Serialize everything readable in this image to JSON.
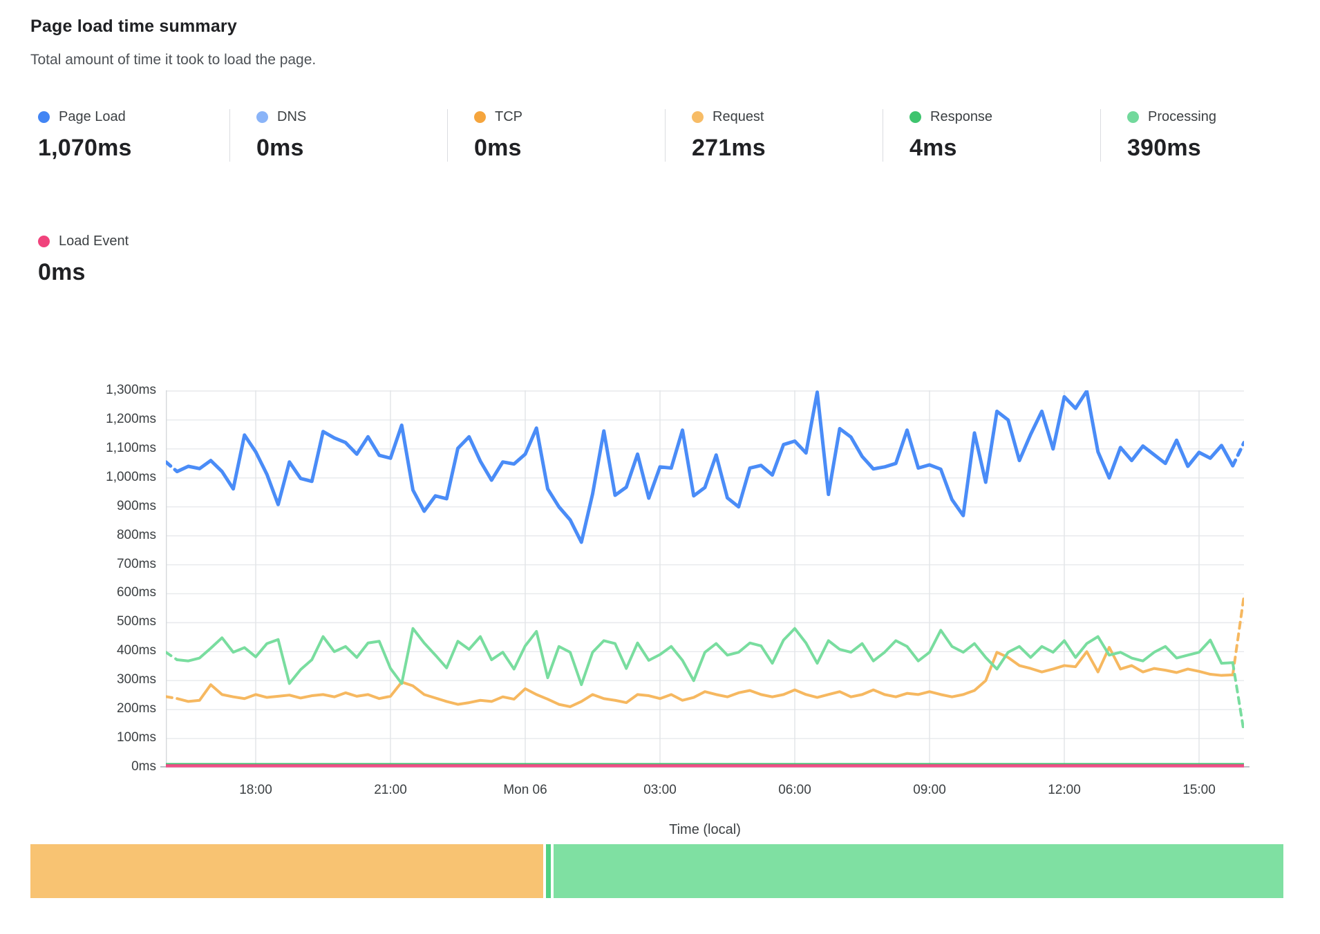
{
  "header": {
    "title": "Page load time summary",
    "subtitle": "Total amount of time it took to load the page."
  },
  "summary": {
    "stats": [
      {
        "label": "Page Load",
        "value": "1,070ms",
        "color": "#4285f4"
      },
      {
        "label": "DNS",
        "value": "0ms",
        "color": "#8ab4f8"
      },
      {
        "label": "TCP",
        "value": "0ms",
        "color": "#f5a53d"
      },
      {
        "label": "Request",
        "value": "271ms",
        "color": "#f7bc66"
      },
      {
        "label": "Response",
        "value": "4ms",
        "color": "#3ec46e"
      },
      {
        "label": "Processing",
        "value": "390ms",
        "color": "#72d99c"
      }
    ],
    "secondary": [
      {
        "label": "Load Event",
        "value": "0ms",
        "color": "#f0437c"
      }
    ]
  },
  "chart_data": {
    "type": "line",
    "title": "Page load time summary",
    "x_axis": {
      "label": "Time (local)",
      "tick_labels": [
        "18:00",
        "21:00",
        "Mon 06",
        "03:00",
        "06:00",
        "09:00",
        "12:00",
        "15:00"
      ],
      "tick_hours": [
        2,
        5,
        8,
        11,
        14,
        17,
        20,
        23
      ],
      "span_hours": 24,
      "start": "16:00",
      "end": "16:00",
      "point_interval_min": 15
    },
    "y_axis": {
      "unit": "ms",
      "min": 0,
      "max": 1300,
      "step": 100,
      "tick_labels": [
        "0ms",
        "100ms",
        "200ms",
        "300ms",
        "400ms",
        "500ms",
        "600ms",
        "700ms",
        "800ms",
        "900ms",
        "1,000ms",
        "1,100ms",
        "1,200ms",
        "1,300ms"
      ]
    },
    "grid": true,
    "legend_position": "top-stats",
    "series": [
      {
        "name": "Request",
        "color": "#f6b860",
        "width": 4,
        "dash_first": true,
        "dash_last": true,
        "values": [
          245,
          238,
          228,
          232,
          286,
          252,
          244,
          238,
          252,
          242,
          246,
          250,
          240,
          248,
          252,
          244,
          258,
          246,
          252,
          238,
          246,
          295,
          282,
          252,
          240,
          228,
          218,
          224,
          232,
          228,
          244,
          236,
          272,
          252,
          236,
          218,
          210,
          228,
          252,
          238,
          232,
          224,
          252,
          248,
          238,
          252,
          232,
          242,
          262,
          252,
          244,
          258,
          266,
          252,
          244,
          252,
          268,
          252,
          242,
          252,
          262,
          244,
          252,
          268,
          252,
          244,
          256,
          252,
          262,
          252,
          244,
          252,
          266,
          300,
          398,
          380,
          352,
          342,
          330,
          340,
          352,
          348,
          400,
          330,
          415,
          340,
          352,
          330,
          342,
          336,
          328,
          340,
          332,
          322,
          318,
          320,
          592
        ]
      },
      {
        "name": "Processing",
        "color": "#79dd9f",
        "width": 4,
        "dash_first": true,
        "dash_last": true,
        "values": [
          398,
          372,
          368,
          378,
          412,
          448,
          398,
          414,
          382,
          428,
          442,
          290,
          338,
          372,
          452,
          400,
          418,
          380,
          430,
          436,
          342,
          290,
          480,
          430,
          388,
          344,
          436,
          408,
          452,
          372,
          398,
          340,
          420,
          470,
          310,
          418,
          398,
          286,
          398,
          438,
          428,
          342,
          430,
          370,
          390,
          418,
          370,
          300,
          398,
          428,
          388,
          398,
          430,
          420,
          360,
          440,
          480,
          430,
          360,
          438,
          408,
          398,
          428,
          368,
          398,
          438,
          418,
          368,
          398,
          474,
          418,
          398,
          428,
          380,
          340,
          398,
          418,
          380,
          418,
          398,
          438,
          380,
          428,
          452,
          388,
          398,
          378,
          368,
          398,
          418,
          378,
          388,
          398,
          440,
          360,
          362,
          122
        ]
      },
      {
        "name": "Page Load",
        "color": "#4a8cf7",
        "width": 5,
        "dash_first": true,
        "dash_last": true,
        "values": [
          1055,
          1022,
          1040,
          1032,
          1060,
          1022,
          962,
          1148,
          1090,
          1012,
          908,
          1055,
          998,
          988,
          1160,
          1138,
          1122,
          1082,
          1142,
          1078,
          1068,
          1182,
          958,
          885,
          938,
          928,
          1102,
          1142,
          1058,
          992,
          1055,
          1048,
          1082,
          1172,
          962,
          900,
          855,
          778,
          945,
          1162,
          940,
          968,
          1082,
          930,
          1038,
          1034,
          1165,
          938,
          967,
          1079,
          931,
          900,
          1034,
          1043,
          1010,
          1115,
          1127,
          1086,
          1296,
          943,
          1170,
          1141,
          1074,
          1031,
          1038,
          1050,
          1165,
          1034,
          1045,
          1030,
          925,
          870,
          1155,
          985,
          1230,
          1200,
          1060,
          1150,
          1230,
          1100,
          1280,
          1240,
          1300,
          1090,
          1000,
          1105,
          1060,
          1110,
          1080,
          1050,
          1130,
          1040,
          1088,
          1068,
          1112,
          1042,
          1122
        ]
      },
      {
        "name": "Response",
        "color": "#41c474",
        "width": 3,
        "flat_value": 12,
        "summary_value_ms": 4
      },
      {
        "name": "Load Event",
        "color": "#ef4d85",
        "width": 4.5,
        "flat_value": 6,
        "summary_value_ms": 0
      },
      {
        "name": "DNS",
        "color": "#8ab4f8",
        "width": 0,
        "flat_value": 0,
        "hidden": true,
        "summary_value_ms": 0
      },
      {
        "name": "TCP",
        "color": "#f5a53d",
        "width": 0,
        "flat_value": 0,
        "hidden": true,
        "summary_value_ms": 0
      }
    ]
  },
  "breakdown_bar": {
    "segments": [
      {
        "name": "request-share",
        "color": "#f8c372",
        "percent": 40.93
      },
      {
        "name": "gap",
        "color": "#ffffff",
        "percent": 0.22
      },
      {
        "name": "response-share",
        "color": "#52d183",
        "percent": 0.39
      },
      {
        "name": "gap",
        "color": "#ffffff",
        "percent": 0.22
      },
      {
        "name": "processing-share",
        "color": "#7fe0a2",
        "percent": 58.24
      }
    ]
  }
}
